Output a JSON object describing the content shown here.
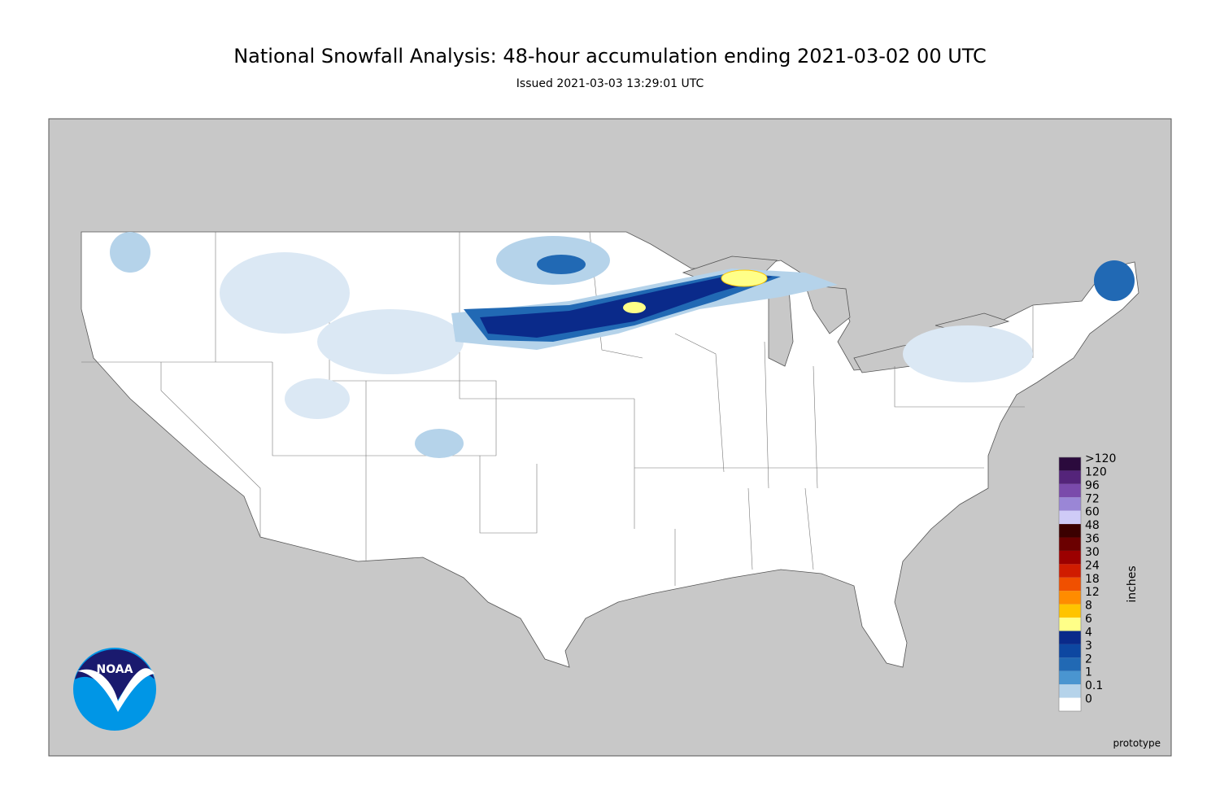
{
  "header": {
    "title": "National Snowfall Analysis: 48-hour accumulation ending 2021-03-02 00 UTC",
    "subtitle": "Issued 2021-03-03 13:29:01 UTC"
  },
  "legend": {
    "title": "inches",
    "levels": [
      {
        "label": ">120",
        "color": "#2b0a3d"
      },
      {
        "label": "120",
        "color": "#54247a"
      },
      {
        "label": "96",
        "color": "#7a4aab"
      },
      {
        "label": "72",
        "color": "#9a86d6"
      },
      {
        "label": "60",
        "color": "#cfcbf7"
      },
      {
        "label": "48",
        "color": "#3b0000"
      },
      {
        "label": "36",
        "color": "#6b0000"
      },
      {
        "label": "30",
        "color": "#9c0000"
      },
      {
        "label": "24",
        "color": "#d01c00"
      },
      {
        "label": "18",
        "color": "#f05000"
      },
      {
        "label": "12",
        "color": "#ff8c00"
      },
      {
        "label": "8",
        "color": "#ffc400"
      },
      {
        "label": "6",
        "color": "#ffff88"
      },
      {
        "label": "4",
        "color": "#0a2a8a"
      },
      {
        "label": "3",
        "color": "#0d47a1"
      },
      {
        "label": "2",
        "color": "#2169b4"
      },
      {
        "label": "1",
        "color": "#4a95d0"
      },
      {
        "label": "0.1",
        "color": "#b5d3ea"
      },
      {
        "label": "0",
        "color": "#ffffff"
      }
    ]
  },
  "logo": {
    "text": "NOAA"
  },
  "footer": {
    "note": "prototype"
  }
}
